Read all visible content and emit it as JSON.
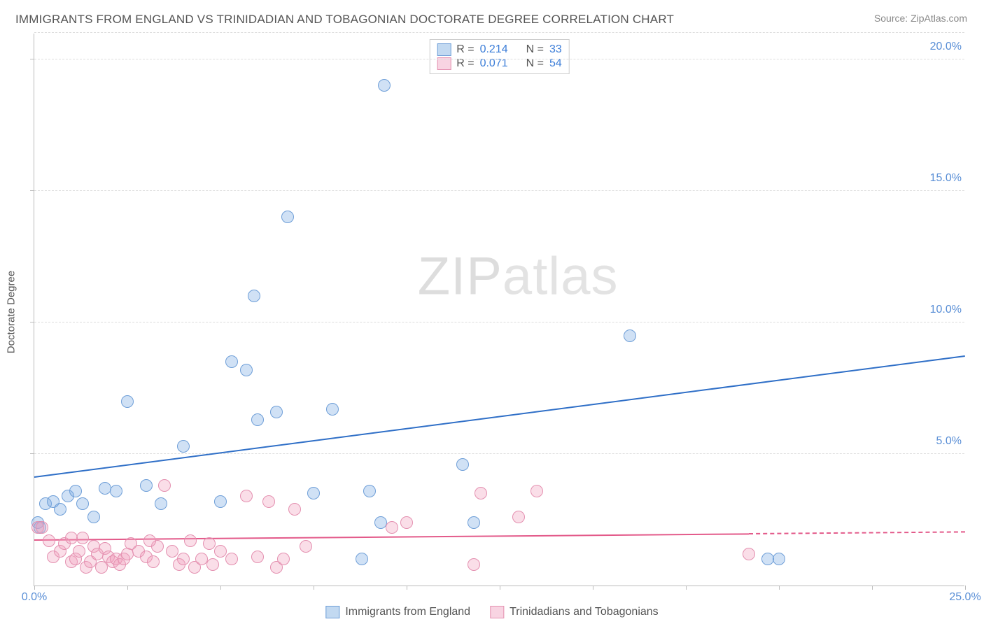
{
  "title": "IMMIGRANTS FROM ENGLAND VS TRINIDADIAN AND TOBAGONIAN DOCTORATE DEGREE CORRELATION CHART",
  "source": "Source: ZipAtlas.com",
  "ylabel": "Doctorate Degree",
  "watermark_a": "ZIP",
  "watermark_b": "atlas",
  "chart": {
    "type": "scatter",
    "xlim": [
      0,
      25
    ],
    "ylim": [
      0,
      21
    ],
    "x_ticks_minor": [
      0,
      2.5,
      5,
      7.5,
      10,
      12.5,
      15,
      17.5,
      20,
      22.5,
      25
    ],
    "x_labels": [
      {
        "v": 0,
        "t": "0.0%"
      },
      {
        "v": 25,
        "t": "25.0%"
      }
    ],
    "y_grid": [
      5,
      10,
      15,
      20,
      21
    ],
    "y_labels": [
      {
        "v": 5,
        "t": "5.0%"
      },
      {
        "v": 10,
        "t": "10.0%"
      },
      {
        "v": 15,
        "t": "15.0%"
      },
      {
        "v": 20,
        "t": "20.0%"
      }
    ],
    "y_label_color": "#5a8fd6",
    "x_label_color": "#5a8fd6",
    "background_color": "#ffffff",
    "grid_color": "#dddddd",
    "axis_color": "#bbbbbb",
    "marker_radius": 9,
    "marker_stroke_width": 1.5,
    "series": [
      {
        "name": "Immigrants from England",
        "fill": "rgba(120,170,225,0.35)",
        "stroke": "#6f9fd8",
        "trend_color": "#2f6fc7",
        "trend": {
          "x1": 0,
          "y1": 4.1,
          "x2": 25,
          "y2": 8.7,
          "dash_from_x": null
        },
        "points": [
          [
            0.1,
            2.4
          ],
          [
            0.15,
            2.2
          ],
          [
            0.3,
            3.1
          ],
          [
            0.5,
            3.2
          ],
          [
            0.7,
            2.9
          ],
          [
            0.9,
            3.4
          ],
          [
            1.1,
            3.6
          ],
          [
            1.3,
            3.1
          ],
          [
            1.6,
            2.6
          ],
          [
            1.9,
            3.7
          ],
          [
            2.2,
            3.6
          ],
          [
            2.5,
            7.0
          ],
          [
            3.0,
            3.8
          ],
          [
            3.4,
            3.1
          ],
          [
            4.0,
            5.3
          ],
          [
            5.0,
            3.2
          ],
          [
            5.3,
            8.5
          ],
          [
            5.7,
            8.2
          ],
          [
            5.9,
            11.0
          ],
          [
            6.0,
            6.3
          ],
          [
            6.5,
            6.6
          ],
          [
            6.8,
            14.0
          ],
          [
            7.5,
            3.5
          ],
          [
            8.0,
            6.7
          ],
          [
            8.8,
            1.0
          ],
          [
            9.0,
            3.6
          ],
          [
            9.3,
            2.4
          ],
          [
            9.4,
            19.0
          ],
          [
            11.5,
            4.6
          ],
          [
            11.8,
            2.4
          ],
          [
            16.0,
            9.5
          ],
          [
            19.7,
            1.0
          ],
          [
            20.0,
            1.0
          ]
        ]
      },
      {
        "name": "Trinidadians and Tobagonians",
        "fill": "rgba(240,160,190,0.35)",
        "stroke": "#e490b0",
        "trend_color": "#e35a8a",
        "trend": {
          "x1": 0,
          "y1": 1.7,
          "x2": 25,
          "y2": 2.0,
          "dash_from_x": 19.2
        },
        "points": [
          [
            0.1,
            2.2
          ],
          [
            0.2,
            2.2
          ],
          [
            0.4,
            1.7
          ],
          [
            0.5,
            1.1
          ],
          [
            0.7,
            1.3
          ],
          [
            0.8,
            1.6
          ],
          [
            1.0,
            0.9
          ],
          [
            1.1,
            1.0
          ],
          [
            1.2,
            1.3
          ],
          [
            1.3,
            1.8
          ],
          [
            1.4,
            0.7
          ],
          [
            1.5,
            0.9
          ],
          [
            1.6,
            1.5
          ],
          [
            1.7,
            1.2
          ],
          [
            1.8,
            0.7
          ],
          [
            1.9,
            1.4
          ],
          [
            2.0,
            1.1
          ],
          [
            2.1,
            0.9
          ],
          [
            2.2,
            1.0
          ],
          [
            2.3,
            0.8
          ],
          [
            2.4,
            1.0
          ],
          [
            2.6,
            1.6
          ],
          [
            2.8,
            1.3
          ],
          [
            3.0,
            1.1
          ],
          [
            3.2,
            0.9
          ],
          [
            3.3,
            1.5
          ],
          [
            3.5,
            3.8
          ],
          [
            3.7,
            1.3
          ],
          [
            3.9,
            0.8
          ],
          [
            4.0,
            1.0
          ],
          [
            4.2,
            1.7
          ],
          [
            4.3,
            0.7
          ],
          [
            4.5,
            1.0
          ],
          [
            4.7,
            1.6
          ],
          [
            4.8,
            0.8
          ],
          [
            5.0,
            1.3
          ],
          [
            5.3,
            1.0
          ],
          [
            5.7,
            3.4
          ],
          [
            6.0,
            1.1
          ],
          [
            6.3,
            3.2
          ],
          [
            6.5,
            0.7
          ],
          [
            6.7,
            1.0
          ],
          [
            7.0,
            2.9
          ],
          [
            7.3,
            1.5
          ],
          [
            9.6,
            2.2
          ],
          [
            10.0,
            2.4
          ],
          [
            11.8,
            0.8
          ],
          [
            12.0,
            3.5
          ],
          [
            13.0,
            2.6
          ],
          [
            13.5,
            3.6
          ],
          [
            19.2,
            1.2
          ],
          [
            1.0,
            1.8
          ],
          [
            2.5,
            1.2
          ],
          [
            3.1,
            1.7
          ]
        ]
      }
    ]
  },
  "stats": {
    "rows": [
      {
        "swatch_fill": "rgba(120,170,225,0.45)",
        "swatch_stroke": "#6f9fd8",
        "r": "0.214",
        "n": "33"
      },
      {
        "swatch_fill": "rgba(240,160,190,0.45)",
        "swatch_stroke": "#e490b0",
        "r": "0.071",
        "n": "54"
      }
    ],
    "r_label": "R =",
    "n_label": "N ="
  },
  "legend": [
    {
      "fill": "rgba(120,170,225,0.45)",
      "stroke": "#6f9fd8",
      "label": "Immigrants from England"
    },
    {
      "fill": "rgba(240,160,190,0.45)",
      "stroke": "#e490b0",
      "label": "Trinidadians and Tobagonians"
    }
  ]
}
